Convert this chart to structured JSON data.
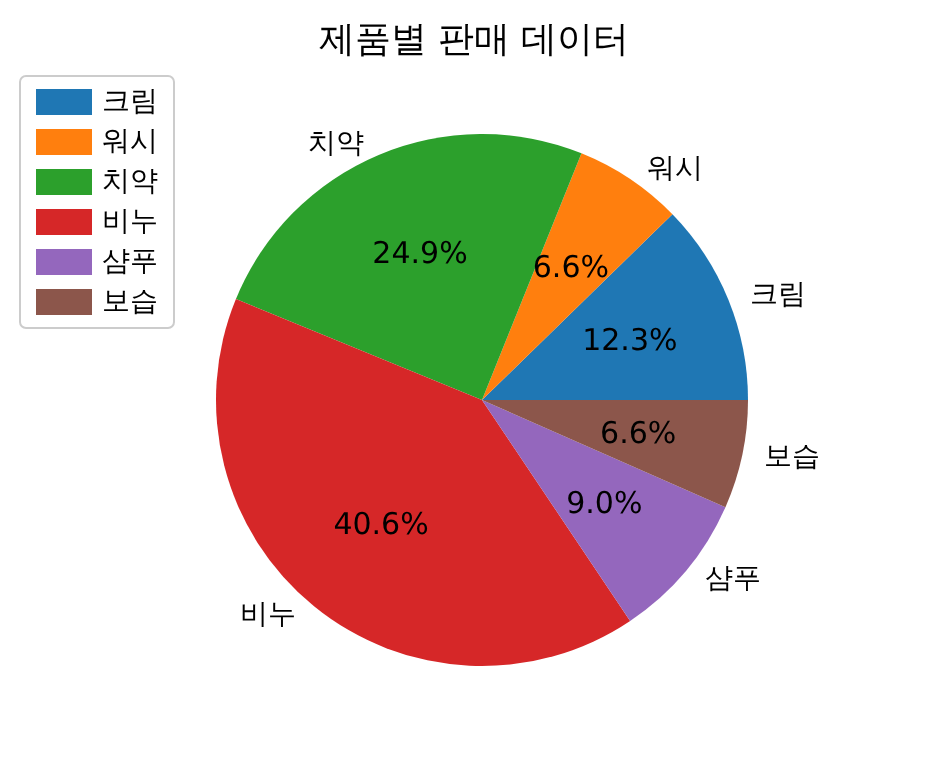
{
  "chart_data": {
    "type": "pie",
    "title": "제품별 판매 데이터",
    "categories": [
      "크림",
      "워시",
      "치약",
      "비누",
      "샴푸",
      "보습"
    ],
    "values": [
      12.3,
      6.6,
      24.9,
      40.6,
      9.0,
      6.6
    ],
    "value_labels": [
      "12.3%",
      "6.6%",
      "24.9%",
      "40.6%",
      "9.0%",
      "6.6%"
    ],
    "colors": [
      "#1f77b4",
      "#ff7f0e",
      "#2ca02c",
      "#d62728",
      "#9467bd",
      "#8c564b"
    ],
    "legend": "top left"
  }
}
